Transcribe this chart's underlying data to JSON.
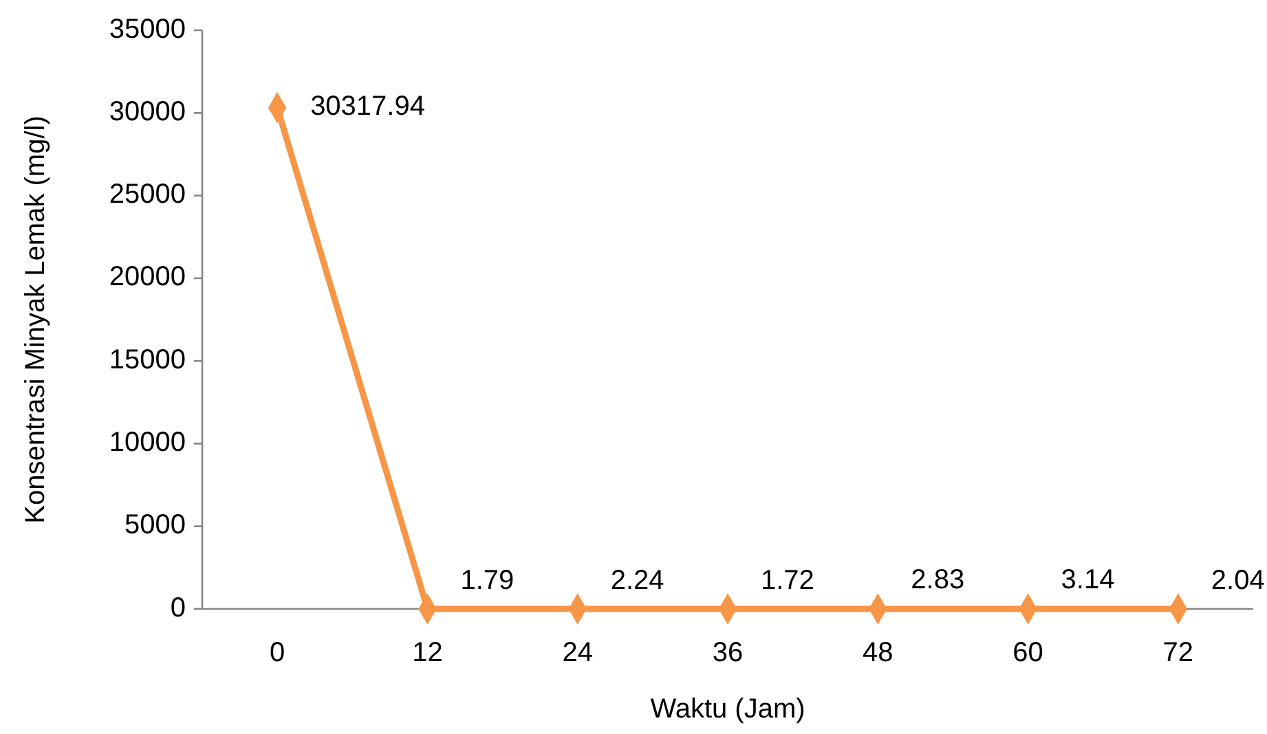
{
  "chart_data": {
    "type": "line",
    "xlabel": "Waktu (Jam)",
    "ylabel": "Konsentrasi Minyak Lemak (mg/l)",
    "categories": [
      "0",
      "12",
      "24",
      "36",
      "48",
      "60",
      "72"
    ],
    "series": [
      {
        "color": "#f79646",
        "values": [
          30317.94,
          1.79,
          2.24,
          1.72,
          2.83,
          3.14,
          2.04
        ]
      }
    ],
    "ylim": [
      0,
      35000
    ],
    "yticks": [
      0,
      5000,
      10000,
      15000,
      20000,
      25000,
      30000,
      35000
    ],
    "grid": false,
    "marker": "diamond",
    "line_style": "solid",
    "data_labels": true
  }
}
